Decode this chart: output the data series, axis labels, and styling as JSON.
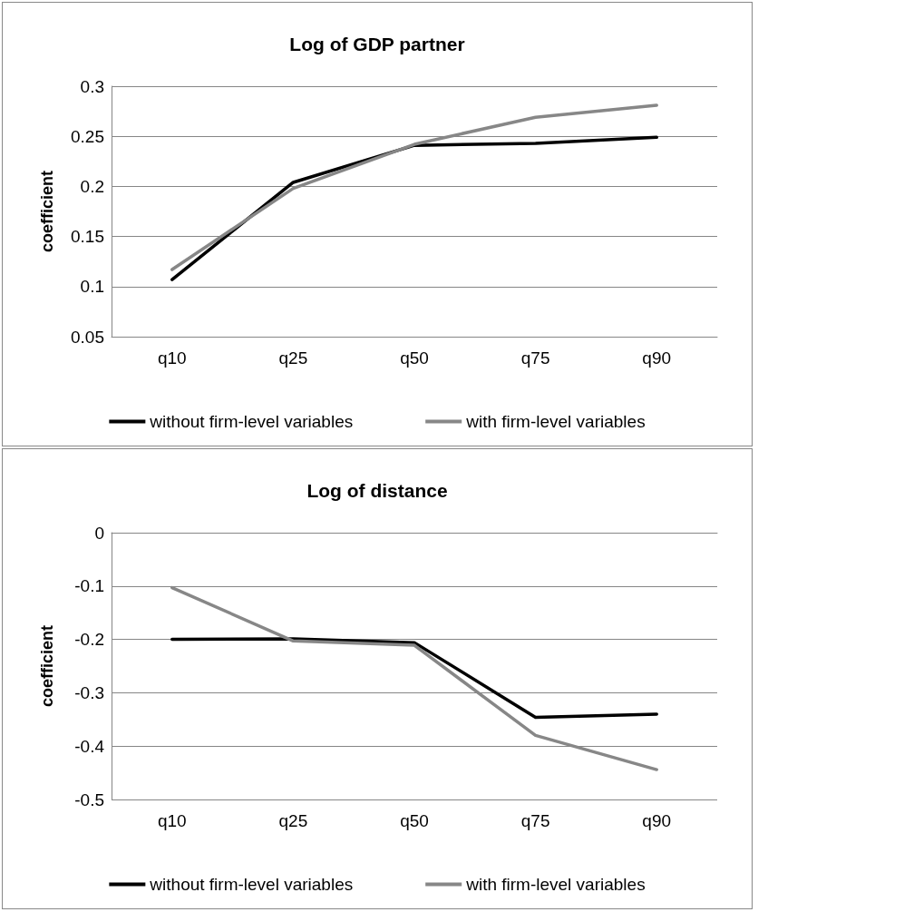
{
  "chart_data": [
    {
      "type": "line",
      "title": "Log of GDP partner",
      "ylabel": "coefficient",
      "categories": [
        "q10",
        "q25",
        "q50",
        "q75",
        "q90"
      ],
      "series": [
        {
          "name": "without firm-level variables",
          "color": "#000000",
          "values": [
            0.107,
            0.204,
            0.241,
            0.243,
            0.249
          ]
        },
        {
          "name": "with firm-level variables",
          "color": "#878787",
          "values": [
            0.117,
            0.198,
            0.242,
            0.269,
            0.281
          ]
        }
      ],
      "ylim": [
        0.05,
        0.3
      ],
      "yticks": [
        0.05,
        0.1,
        0.15,
        0.2,
        0.25,
        0.3
      ],
      "grid": "y",
      "legend": "bottom",
      "marker": "none",
      "line_style": "solid"
    },
    {
      "type": "line",
      "title": "Log of distance",
      "ylabel": "coefficient",
      "categories": [
        "q10",
        "q25",
        "q50",
        "q75",
        "q90"
      ],
      "series": [
        {
          "name": "without firm-level variables",
          "color": "#000000",
          "values": [
            -0.2,
            -0.199,
            -0.206,
            -0.346,
            -0.34
          ]
        },
        {
          "name": "with firm-level variables",
          "color": "#878787",
          "values": [
            -0.103,
            -0.203,
            -0.211,
            -0.38,
            -0.444
          ]
        }
      ],
      "ylim": [
        -0.5,
        0
      ],
      "yticks": [
        -0.5,
        -0.4,
        -0.3,
        -0.2,
        -0.1,
        0
      ],
      "grid": "y",
      "legend": "bottom",
      "marker": "none",
      "line_style": "solid"
    }
  ]
}
